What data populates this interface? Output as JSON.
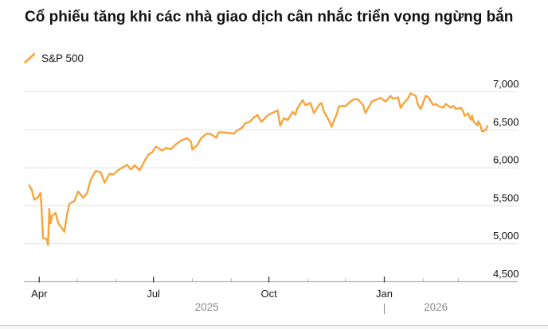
{
  "header": {
    "title": "Cổ phiếu tăng khi các nhà giao dịch cân nhắc triển vọng ngừng bắn"
  },
  "legend": {
    "items": [
      {
        "label": "S&P 500",
        "color": "#F7A43C"
      }
    ]
  },
  "chart_data": {
    "type": "line",
    "title": "Cổ phiếu tăng khi các nhà giao dịch cân nhắc triển vọng ngừng bắn",
    "xlabel": "",
    "ylabel": "",
    "ylim": [
      4500,
      7000
    ],
    "grid": "horizontal",
    "legend_position": "top-left",
    "yticks": [
      {
        "value": 7000,
        "label": "7,000"
      },
      {
        "value": 6500,
        "label": "6,500"
      },
      {
        "value": 6000,
        "label": "6,000"
      },
      {
        "value": 5500,
        "label": "5,500"
      },
      {
        "value": 5000,
        "label": "5,000"
      },
      {
        "value": 4500,
        "label": "4,500"
      }
    ],
    "xticks": [
      {
        "date": "2025-04-01",
        "label": "Apr",
        "major": true
      },
      {
        "date": "2025-05-01",
        "label": "",
        "major": false
      },
      {
        "date": "2025-06-01",
        "label": "",
        "major": false
      },
      {
        "date": "2025-07-01",
        "label": "Jul",
        "major": true
      },
      {
        "date": "2025-08-01",
        "label": "",
        "major": false
      },
      {
        "date": "2025-09-01",
        "label": "",
        "major": false
      },
      {
        "date": "2025-10-01",
        "label": "Oct",
        "major": true
      },
      {
        "date": "2025-11-01",
        "label": "",
        "major": false
      },
      {
        "date": "2025-12-01",
        "label": "",
        "major": false
      },
      {
        "date": "2026-01-01",
        "label": "Jan",
        "major": true
      },
      {
        "date": "2026-02-01",
        "label": "",
        "major": false
      },
      {
        "date": "2026-03-01",
        "label": "",
        "major": false
      }
    ],
    "year_row": {
      "labels": [
        {
          "label": "2025",
          "from": "2025-03-24",
          "to": "2026-01-01"
        },
        {
          "label": "2026",
          "from": "2026-01-01",
          "to": "2026-03-24"
        }
      ],
      "separator": "|",
      "separator_date": "2026-01-01"
    },
    "colors": {
      "line": "#F7A43C",
      "grid": "#E4E4E4",
      "axis": "#ADADAD",
      "tick_major": "#3C3C3C",
      "tick_minor": "#B0B0B0",
      "axis_label": "#1A1A1A",
      "ytick_label": "#111111",
      "year_label": "#8C8C8C"
    },
    "series": [
      {
        "name": "S&P 500",
        "color": "#F7A43C",
        "dates": [
          "2025-03-24",
          "2025-03-26",
          "2025-03-28",
          "2025-03-31",
          "2025-04-02",
          "2025-04-03",
          "2025-04-04",
          "2025-04-07",
          "2025-04-08",
          "2025-04-09",
          "2025-04-10",
          "2025-04-11",
          "2025-04-14",
          "2025-04-16",
          "2025-04-21",
          "2025-04-23",
          "2025-04-25",
          "2025-04-29",
          "2025-05-02",
          "2025-05-06",
          "2025-05-09",
          "2025-05-12",
          "2025-05-16",
          "2025-05-20",
          "2025-05-23",
          "2025-05-27",
          "2025-05-30",
          "2025-06-03",
          "2025-06-06",
          "2025-06-10",
          "2025-06-13",
          "2025-06-16",
          "2025-06-20",
          "2025-06-24",
          "2025-06-27",
          "2025-06-30",
          "2025-07-03",
          "2025-07-08",
          "2025-07-11",
          "2025-07-15",
          "2025-07-18",
          "2025-07-23",
          "2025-07-28",
          "2025-07-31",
          "2025-08-01",
          "2025-08-05",
          "2025-08-08",
          "2025-08-12",
          "2025-08-15",
          "2025-08-20",
          "2025-08-22",
          "2025-08-26",
          "2025-08-29",
          "2025-09-03",
          "2025-09-05",
          "2025-09-10",
          "2025-09-12",
          "2025-09-16",
          "2025-09-19",
          "2025-09-22",
          "2025-09-25",
          "2025-09-30",
          "2025-10-03",
          "2025-10-08",
          "2025-10-10",
          "2025-10-13",
          "2025-10-16",
          "2025-10-20",
          "2025-10-22",
          "2025-10-24",
          "2025-10-28",
          "2025-10-30",
          "2025-11-03",
          "2025-11-06",
          "2025-11-10",
          "2025-11-12",
          "2025-11-14",
          "2025-11-18",
          "2025-11-20",
          "2025-11-24",
          "2025-11-26",
          "2025-12-01",
          "2025-12-05",
          "2025-12-08",
          "2025-12-11",
          "2025-12-15",
          "2025-12-17",
          "2025-12-22",
          "2025-12-29",
          "2026-01-02",
          "2026-01-06",
          "2026-01-08",
          "2026-01-12",
          "2026-01-14",
          "2026-01-16",
          "2026-01-20",
          "2026-01-22",
          "2026-01-26",
          "2026-01-28",
          "2026-01-30",
          "2026-02-03",
          "2026-02-05",
          "2026-02-09",
          "2026-02-11",
          "2026-02-13",
          "2026-02-17",
          "2026-02-19",
          "2026-02-23",
          "2026-02-25",
          "2026-02-27",
          "2026-03-03",
          "2026-03-05",
          "2026-03-06",
          "2026-03-09",
          "2026-03-10",
          "2026-03-11",
          "2026-03-12",
          "2026-03-13",
          "2026-03-16",
          "2026-03-17",
          "2026-03-18",
          "2026-03-19",
          "2026-03-20",
          "2026-03-23",
          "2026-03-24"
        ],
        "values": [
          5767,
          5712,
          5581,
          5612,
          5671,
          5396,
          5074,
          5062,
          4983,
          5457,
          5268,
          5363,
          5406,
          5276,
          5158,
          5376,
          5525,
          5561,
          5687,
          5607,
          5660,
          5844,
          5958,
          5940,
          5803,
          5922,
          5912,
          5970,
          6000,
          6039,
          5977,
          6033,
          5968,
          6092,
          6173,
          6205,
          6279,
          6226,
          6260,
          6244,
          6297,
          6359,
          6390,
          6339,
          6238,
          6299,
          6389,
          6446,
          6450,
          6395,
          6467,
          6466,
          6460,
          6448,
          6481,
          6532,
          6584,
          6607,
          6664,
          6693,
          6605,
          6688,
          6716,
          6754,
          6553,
          6654,
          6629,
          6735,
          6699,
          6792,
          6891,
          6822,
          6852,
          6720,
          6833,
          6851,
          6734,
          6617,
          6539,
          6705,
          6812,
          6812,
          6871,
          6903,
          6901,
          6827,
          6721,
          6870,
          6920,
          6870,
          6947,
          6906,
          6927,
          6790,
          6840,
          6915,
          6980,
          6947,
          6825,
          6773,
          6947,
          6930,
          6825,
          6840,
          6815,
          6790,
          6840,
          6790,
          6815,
          6773,
          6790,
          6738,
          6685,
          6717,
          6665,
          6633,
          6685,
          6613,
          6560,
          6613,
          6582,
          6530,
          6477,
          6498,
          6550
        ]
      }
    ]
  }
}
